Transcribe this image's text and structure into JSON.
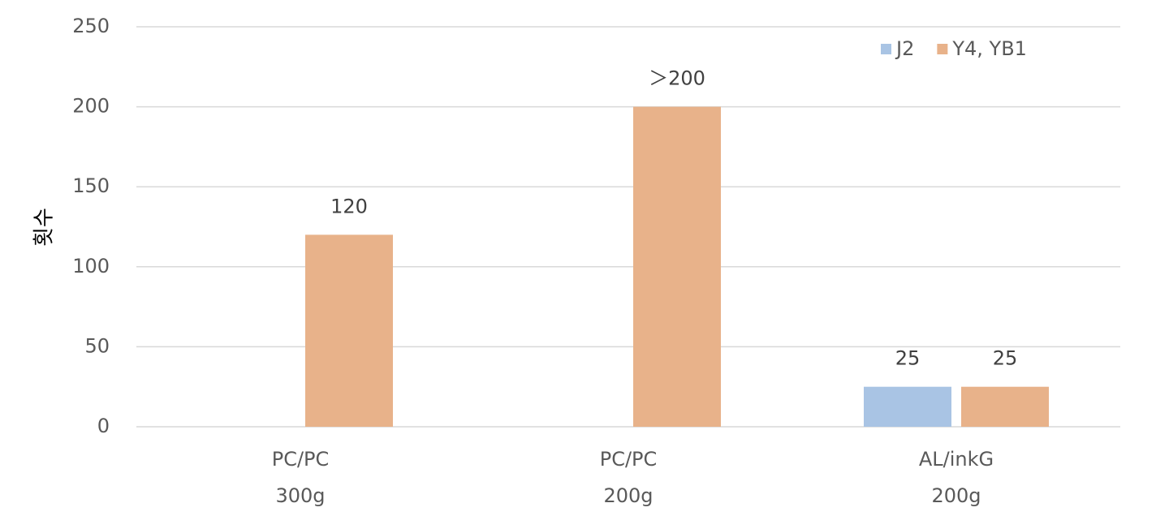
{
  "chart_data": {
    "type": "bar",
    "y_label": "횟수",
    "categories": [
      [
        "PC/PC",
        "300g"
      ],
      [
        "PC/PC",
        "200g"
      ],
      [
        "AL/inkG",
        "200g"
      ]
    ],
    "series": [
      {
        "name": "J2",
        "color": "#a9c4e4",
        "values": [
          null,
          null,
          25
        ]
      },
      {
        "name": "Y4, YB1",
        "color": "#e8b28a",
        "values": [
          120,
          200,
          25
        ],
        "value_labels": [
          "120",
          "＞200",
          "25"
        ]
      }
    ],
    "ylim": [
      0,
      250
    ],
    "yticks": [
      0,
      50,
      100,
      150,
      200,
      250
    ],
    "grid": true,
    "legend": "top-right"
  }
}
